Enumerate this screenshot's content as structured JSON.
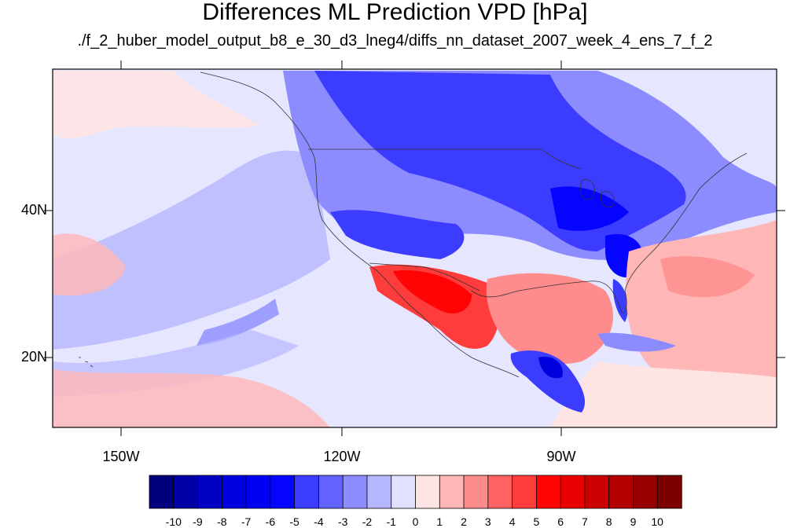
{
  "title": "Differences ML Prediction VPD [hPa]",
  "subtitle": "./f_2_huber_model_output_b8_e_30_d3_lneg4/diffs_nn_dataset_2007_week_4_ens_7_f_2",
  "axes": {
    "lon_labels": [
      "150W",
      "120W",
      "90W"
    ],
    "lat_labels": [
      "40N",
      "20N"
    ]
  },
  "colorbar": {
    "labels": [
      "-10",
      "-9",
      "-8",
      "-7",
      "-6",
      "-5",
      "-4",
      "-3",
      "-2",
      "-1",
      "0",
      "1",
      "2",
      "3",
      "4",
      "5",
      "6",
      "7",
      "8",
      "9",
      "10"
    ],
    "colors": [
      "#00007c",
      "#0000a6",
      "#0000c4",
      "#0000de",
      "#0000f2",
      "#0404ff",
      "#3c3cff",
      "#6262ff",
      "#8c8cff",
      "#b6b6ff",
      "#e0e0ff",
      "#ffe4e4",
      "#ffb6b6",
      "#ff8c8c",
      "#ff6262",
      "#ff3c3c",
      "#ff0404",
      "#e80000",
      "#cc0000",
      "#b20000",
      "#960000",
      "#7c0000"
    ]
  },
  "map": {
    "projection": "cylindrical equidistant",
    "region": "North America",
    "background_color": "#e6e6ff"
  }
}
